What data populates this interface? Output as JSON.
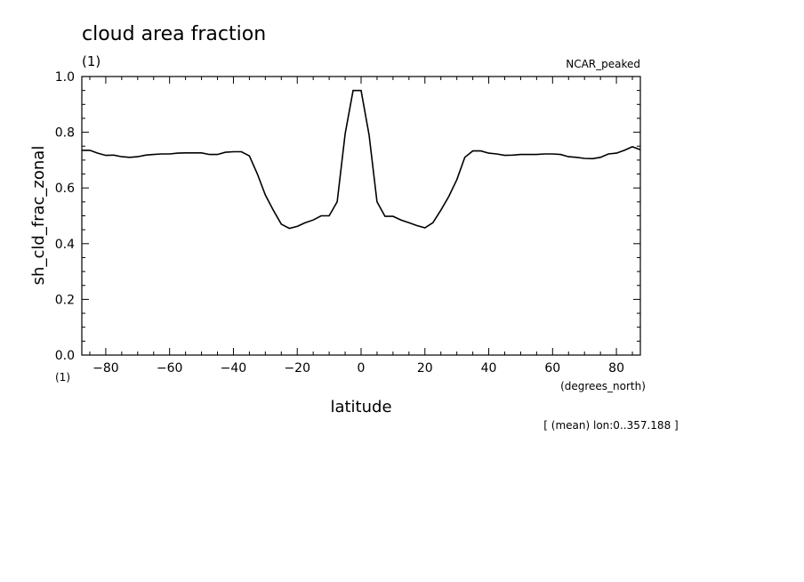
{
  "chart_data": {
    "type": "line",
    "title": "cloud area fraction",
    "title_units": "(1)",
    "dataset_label": "NCAR_peaked",
    "ylabel": "sh_cld_frac_zonal",
    "y_units": "(1)",
    "xlabel": "latitude",
    "x_units": "(degrees_north)",
    "footnote": "[ (mean) lon:0..357.188 ]",
    "xlim": [
      -87.5,
      87.5
    ],
    "ylim": [
      0.0,
      1.0
    ],
    "x_ticks": [
      -80,
      -60,
      -40,
      -20,
      0,
      20,
      40,
      60,
      80
    ],
    "x_tick_labels": [
      "−80",
      "−60",
      "−40",
      "−20",
      "0",
      "20",
      "40",
      "60",
      "80"
    ],
    "y_ticks": [
      0.0,
      0.2,
      0.4,
      0.6,
      0.8,
      1.0
    ],
    "y_tick_labels": [
      "0.0",
      "0.2",
      "0.4",
      "0.6",
      "0.8",
      "1.0"
    ],
    "grid": false,
    "x": [
      -87.5,
      -85,
      -82.5,
      -80,
      -77.5,
      -75,
      -72.5,
      -70,
      -67.5,
      -65,
      -62.5,
      -60,
      -57.5,
      -55,
      -52.5,
      -50,
      -47.5,
      -45,
      -42.5,
      -40,
      -37.5,
      -35,
      -32.5,
      -30,
      -27.5,
      -25,
      -22.5,
      -20,
      -17.5,
      -15,
      -12.5,
      -10,
      -7.5,
      -5,
      -2.5,
      0,
      2.5,
      5,
      7.5,
      10,
      12.5,
      15,
      17.5,
      20,
      22.5,
      25,
      27.5,
      30,
      32.5,
      35,
      37.5,
      40,
      42.5,
      45,
      47.5,
      50,
      52.5,
      55,
      57.5,
      60,
      62.5,
      65,
      67.5,
      70,
      72.5,
      75,
      77.5,
      80,
      82.5,
      85,
      87.5
    ],
    "values": [
      0.735,
      0.735,
      0.725,
      0.717,
      0.718,
      0.712,
      0.71,
      0.712,
      0.718,
      0.72,
      0.722,
      0.722,
      0.725,
      0.726,
      0.726,
      0.726,
      0.72,
      0.72,
      0.728,
      0.73,
      0.73,
      0.715,
      0.65,
      0.575,
      0.52,
      0.47,
      0.455,
      0.462,
      0.475,
      0.485,
      0.5,
      0.5,
      0.55,
      0.795,
      0.95,
      0.95,
      0.79,
      0.55,
      0.498,
      0.498,
      0.485,
      0.475,
      0.465,
      0.457,
      0.475,
      0.52,
      0.57,
      0.63,
      0.71,
      0.733,
      0.733,
      0.725,
      0.722,
      0.717,
      0.718,
      0.72,
      0.72,
      0.72,
      0.722,
      0.722,
      0.72,
      0.712,
      0.71,
      0.706,
      0.705,
      0.71,
      0.722,
      0.725,
      0.735,
      0.748,
      0.737
    ]
  }
}
